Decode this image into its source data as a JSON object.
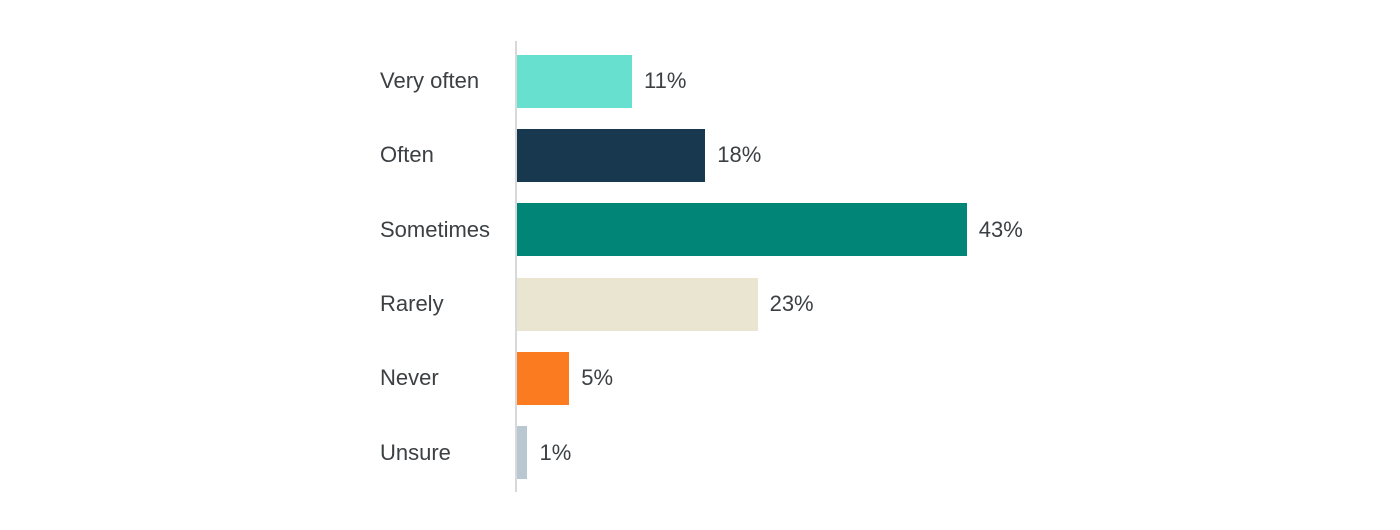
{
  "chart_data": {
    "type": "bar",
    "orientation": "horizontal",
    "title": "",
    "xlabel": "",
    "ylabel": "",
    "grid": false,
    "legend": false,
    "categories": [
      "Very often",
      "Often",
      "Sometimes",
      "Rarely",
      "Never",
      "Unsure"
    ],
    "values": [
      11,
      18,
      43,
      23,
      5,
      1
    ],
    "value_labels": [
      "11%",
      "18%",
      "43%",
      "23%",
      "5%",
      "1%"
    ],
    "bar_colors": [
      "#67e0cf",
      "#17384e",
      "#008577",
      "#eae5d1",
      "#fb7c20",
      "#b9c7d1"
    ],
    "axis_line_color": "#d6d8da",
    "text_color": "#3c4043",
    "xlim": [
      0,
      85
    ]
  }
}
